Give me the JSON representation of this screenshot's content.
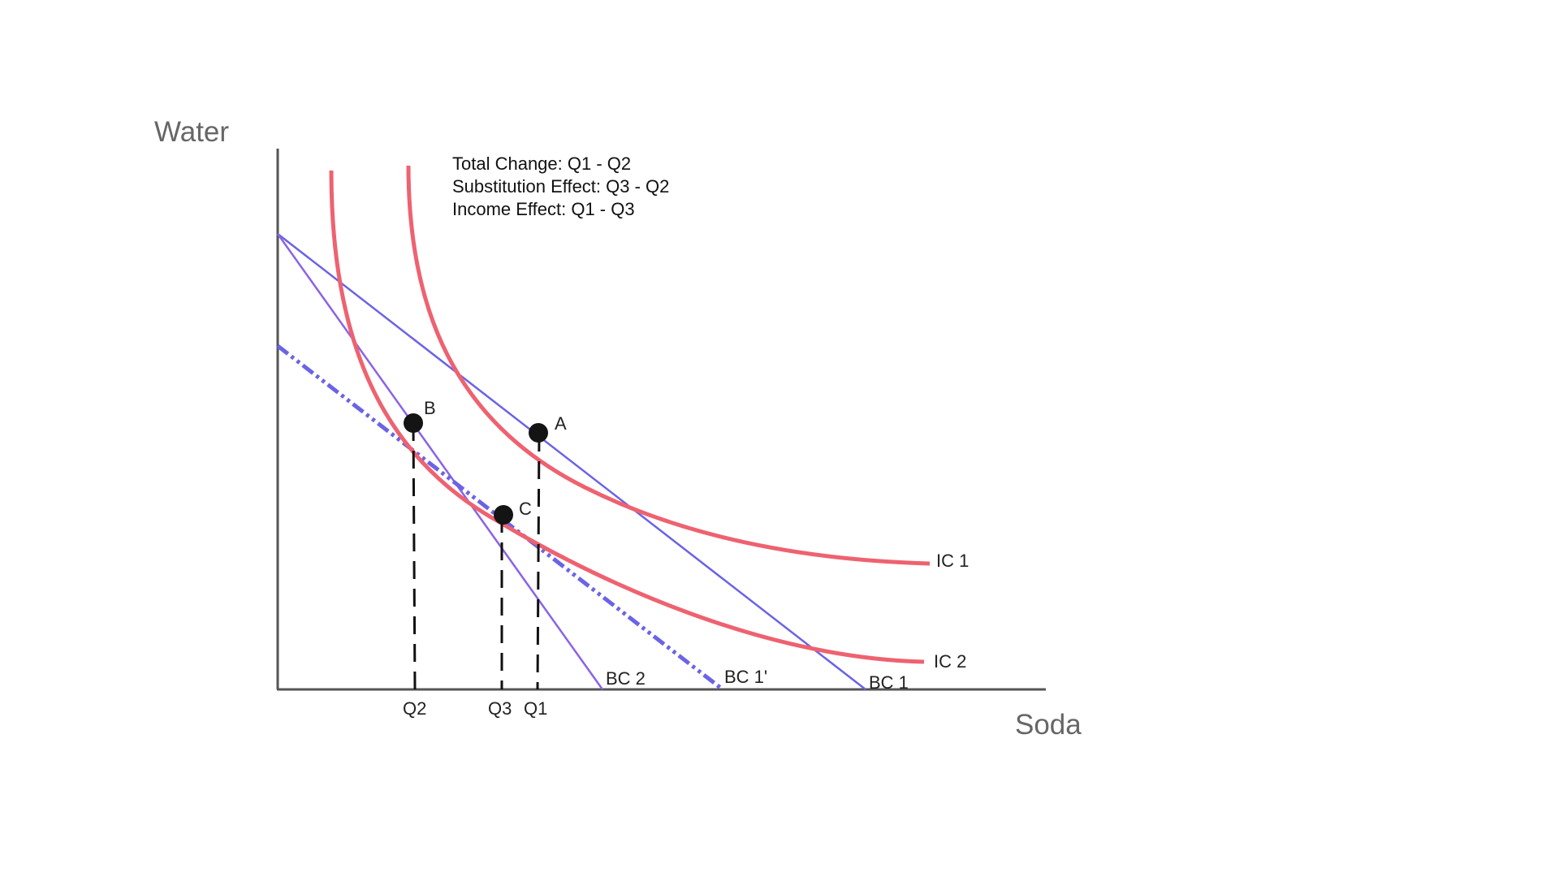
{
  "axes": {
    "y_label": "Water",
    "x_label": "Soda"
  },
  "notes": {
    "total_change": "Total Change: Q1 - Q2",
    "substitution_effect": "Substitution Effect: Q3 - Q2",
    "income_effect": "Income Effect: Q1 - Q3"
  },
  "curves": {
    "ic1": "IC 1",
    "ic2": "IC 2",
    "bc1": "BC 1",
    "bc1_prime": "BC 1'",
    "bc2": "BC 2"
  },
  "points": {
    "a": "A",
    "b": "B",
    "c": "C"
  },
  "quantities": {
    "q1": "Q1",
    "q2": "Q2",
    "q3": "Q3"
  },
  "colors": {
    "indifference": "#ee6270",
    "budget": "#6b63e6",
    "budget_alt": "#8b63e6",
    "axis": "#555555",
    "point": "#141414"
  }
}
